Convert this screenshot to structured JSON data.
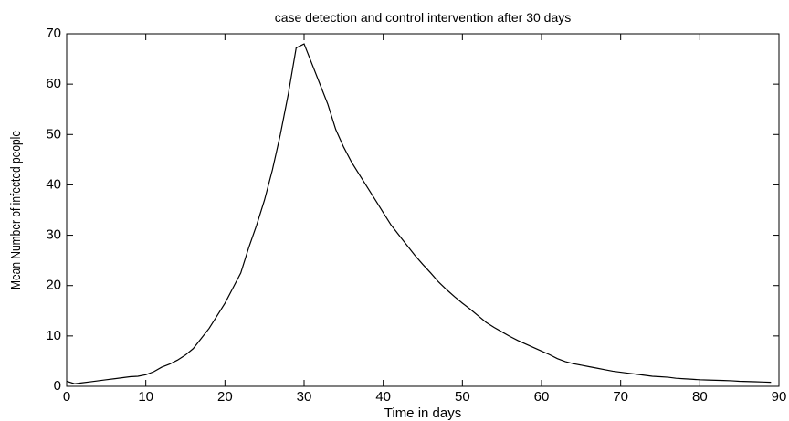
{
  "chart_data": {
    "type": "line",
    "title": "case detection and control intervention after 30 days",
    "x_label": "Time in days",
    "y_label": "Mean Number of infected people",
    "x": [
      0,
      1,
      2,
      3,
      4,
      5,
      6,
      7,
      8,
      9,
      10,
      11,
      12,
      13,
      14,
      15,
      16,
      17,
      18,
      19,
      20,
      21,
      22,
      23,
      24,
      25,
      26,
      27,
      28,
      29,
      30,
      31,
      32,
      33,
      34,
      35,
      36,
      37,
      38,
      39,
      40,
      41,
      42,
      43,
      44,
      45,
      46,
      47,
      48,
      49,
      50,
      51,
      52,
      53,
      54,
      55,
      56,
      57,
      58,
      59,
      60,
      61,
      62,
      63,
      64,
      65,
      66,
      67,
      68,
      69,
      70,
      71,
      72,
      73,
      74,
      75,
      76,
      77,
      78,
      79,
      80,
      81,
      82,
      83,
      84,
      85,
      86,
      87,
      88,
      89
    ],
    "series": [
      {
        "name": "infected",
        "color": "#000000",
        "values": [
          1.0,
          0.5,
          0.7,
          0.9,
          1.1,
          1.3,
          1.5,
          1.7,
          1.9,
          2.0,
          2.3,
          2.9,
          3.8,
          4.4,
          5.2,
          6.2,
          7.5,
          9.5,
          11.5,
          14,
          16.5,
          19.5,
          22.5,
          27.5,
          32,
          37,
          43,
          50,
          58,
          67.2,
          68,
          64,
          60,
          56,
          51,
          47.5,
          44.5,
          42,
          39.5,
          37,
          34.5,
          32,
          30,
          28,
          26,
          24.2,
          22.5,
          20.7,
          19.2,
          17.8,
          16.5,
          15.3,
          14,
          12.7,
          11.7,
          10.8,
          9.9,
          9.1,
          8.4,
          7.7,
          7.0,
          6.3,
          5.5,
          4.9,
          4.5,
          4.2,
          3.9,
          3.6,
          3.3,
          3.0,
          2.8,
          2.6,
          2.4,
          2.2,
          2.0,
          1.9,
          1.8,
          1.6,
          1.5,
          1.4,
          1.3,
          1.25,
          1.2,
          1.15,
          1.1,
          1.0,
          0.95,
          0.9,
          0.85,
          0.8
        ]
      }
    ],
    "xlim": [
      0,
      90
    ],
    "xticks": [
      0,
      10,
      20,
      30,
      40,
      50,
      60,
      70,
      80,
      90
    ],
    "ylim": [
      0,
      70
    ],
    "yticks": [
      0,
      10,
      20,
      30,
      40,
      50,
      60,
      70
    ]
  }
}
